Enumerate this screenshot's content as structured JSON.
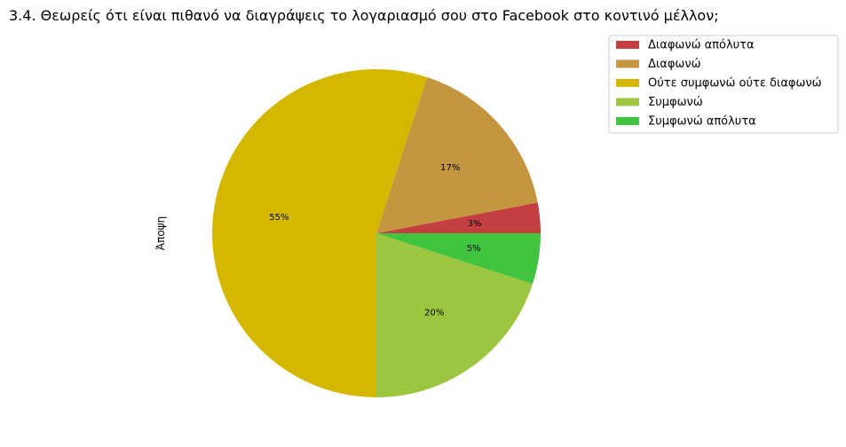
{
  "chart_data": {
    "type": "pie",
    "title": "3.4. Θεωρείς ότι είναι πιθανό να διαγράψεις το λογαριασμό σου στο Facebook στο κοντινό μέλλον;",
    "ylabel": "Άποψη",
    "start_angle_deg": 0,
    "direction": "counterclockwise",
    "legend_position": "top-right",
    "slices": [
      {
        "label": "Διαφωνώ απόλυτα",
        "value": 3,
        "pct_label": "3%",
        "color": "#c44040"
      },
      {
        "label": "Διαφωνώ",
        "value": 17,
        "pct_label": "17%",
        "color": "#c49640"
      },
      {
        "label": "Ούτε συμφωνώ ούτε διαφωνώ",
        "value": 55,
        "pct_label": "55%",
        "color": "#d4b800"
      },
      {
        "label": "Συμφωνώ",
        "value": 20,
        "pct_label": "20%",
        "color": "#9cc640"
      },
      {
        "label": "Συμφωνώ απόλυτα",
        "value": 5,
        "pct_label": "5%",
        "color": "#40c440"
      }
    ]
  }
}
